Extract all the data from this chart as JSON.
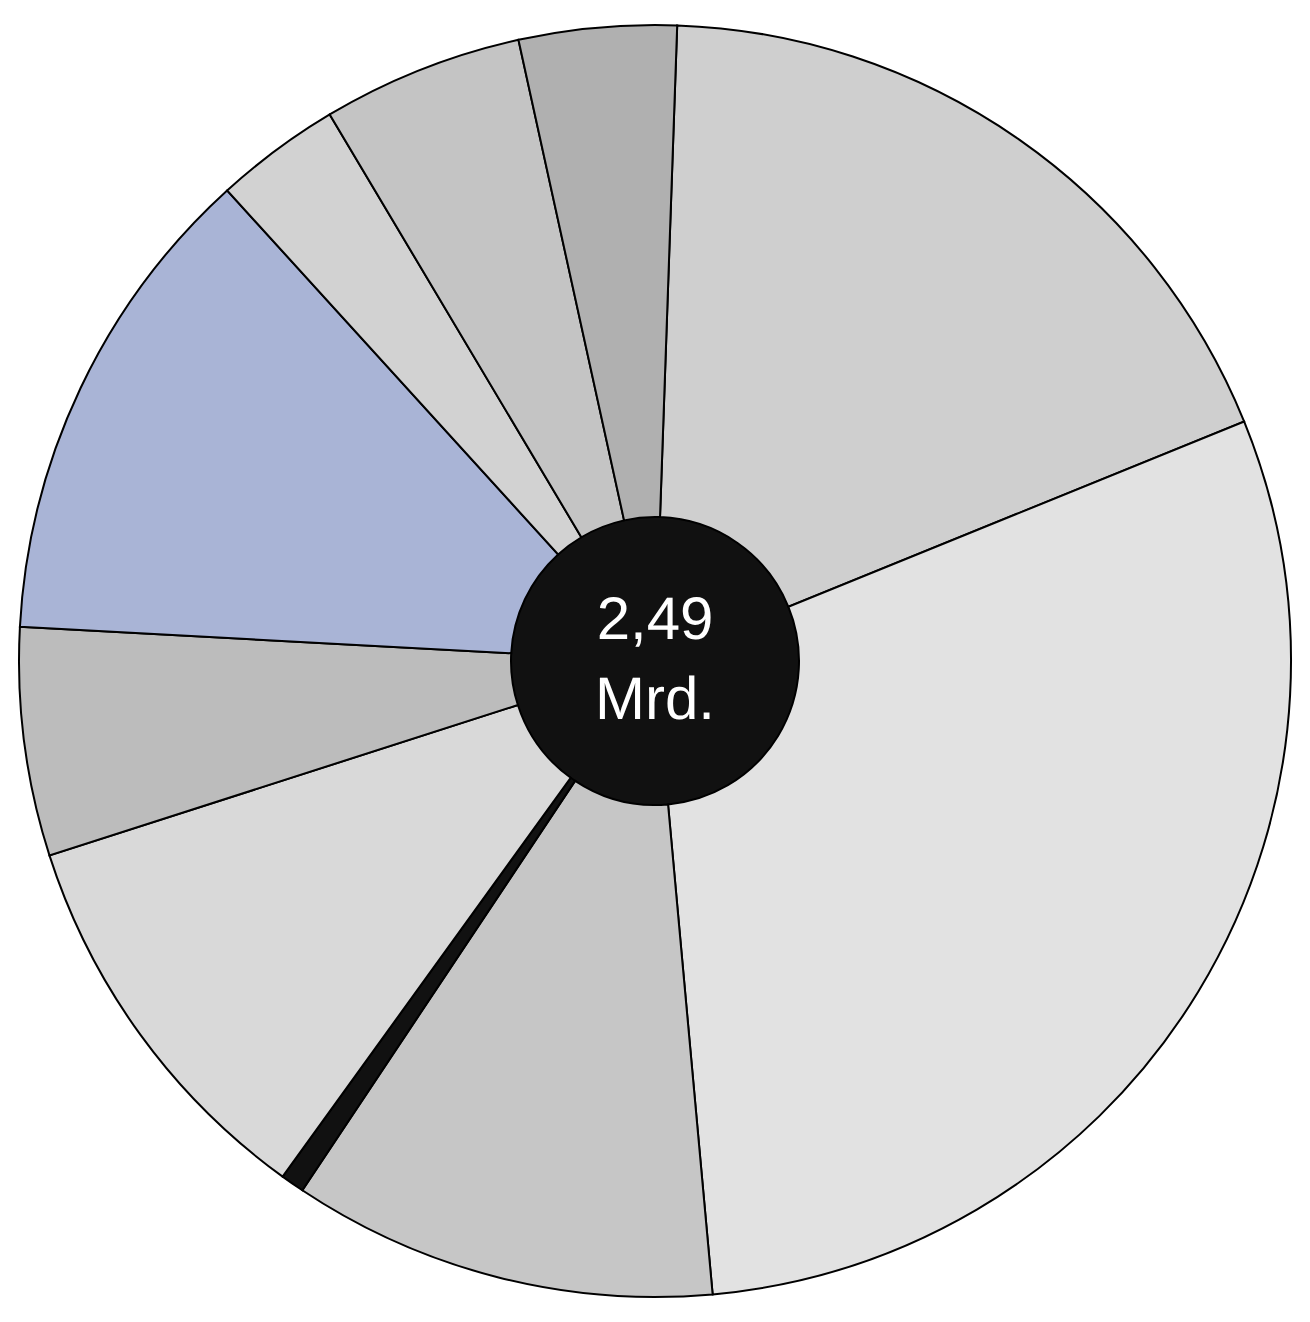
{
  "chart_data": {
    "type": "donut",
    "categories": [
      null,
      null,
      null,
      null,
      null,
      null,
      null,
      null,
      null,
      null
    ],
    "values": [
      18.3,
      29.7,
      10.8,
      0.6,
      10.1,
      5.8,
      12.4,
      3.2,
      5.1,
      4.0
    ],
    "colors": [
      "#cfcfcf",
      "#e2e2e2",
      "#c6c6c6",
      "#111111",
      "#d9d9d9",
      "#bcbcbc",
      "#a9b4d6",
      "#d2d2d2",
      "#c4c4c4",
      "#b0b0b0"
    ],
    "annotations": [
      "2,49 Mrd."
    ]
  }
}
